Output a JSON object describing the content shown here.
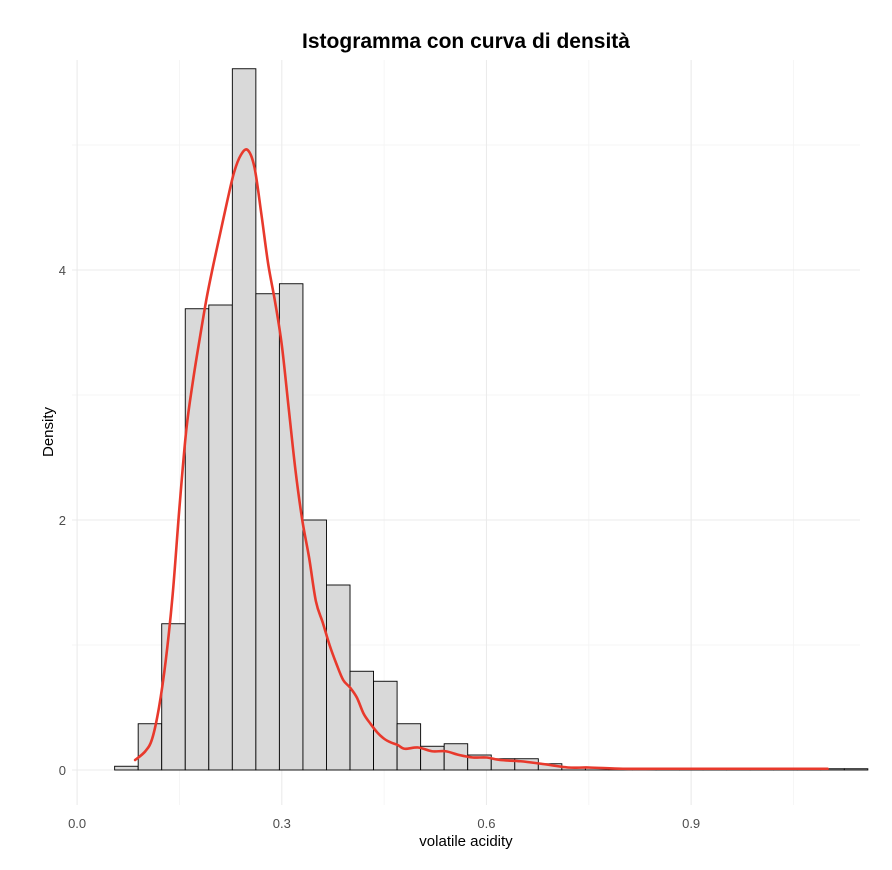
{
  "chart_data": {
    "type": "bar",
    "title": "Istogramma con curva di densità",
    "xlabel": "volatile acidity",
    "ylabel": "Density",
    "xlim": [
      -0.0075,
      1.1475
    ],
    "ylim": [
      -0.28,
      5.68
    ],
    "x_ticks": [
      0.0,
      0.3,
      0.6,
      0.9
    ],
    "x_tick_labels": [
      "0.0",
      "0.3",
      "0.6",
      "0.9"
    ],
    "y_ticks": [
      0,
      2,
      4
    ],
    "y_tick_labels": [
      "0",
      "2",
      "4"
    ],
    "grid": true,
    "legend": "none",
    "bins": {
      "start": 0.055,
      "width": 0.0345,
      "densities": [
        0.03,
        0.37,
        1.17,
        3.69,
        3.72,
        5.61,
        3.81,
        3.89,
        2.0,
        1.48,
        0.79,
        0.71,
        0.37,
        0.19,
        0.21,
        0.12,
        0.09,
        0.09,
        0.05,
        0.02,
        0.02,
        0.01,
        0.01,
        0.01,
        0.01,
        0.01,
        0.01,
        0.01,
        0.01,
        0.01,
        0.01,
        0.01
      ]
    },
    "series": [
      {
        "type": "line",
        "color": "#e8392c",
        "x": [
          0.085,
          0.1,
          0.11,
          0.12,
          0.13,
          0.14,
          0.15,
          0.16,
          0.17,
          0.18,
          0.19,
          0.2,
          0.21,
          0.22,
          0.23,
          0.24,
          0.25,
          0.26,
          0.27,
          0.28,
          0.29,
          0.3,
          0.31,
          0.32,
          0.33,
          0.34,
          0.35,
          0.36,
          0.37,
          0.38,
          0.39,
          0.4,
          0.41,
          0.42,
          0.43,
          0.44,
          0.45,
          0.46,
          0.47,
          0.48,
          0.5,
          0.52,
          0.54,
          0.56,
          0.58,
          0.6,
          0.62,
          0.65,
          0.68,
          0.72,
          0.75,
          0.8,
          0.85,
          0.9,
          0.95,
          1.0,
          1.05,
          1.1
        ],
        "y": [
          0.08,
          0.15,
          0.25,
          0.5,
          0.88,
          1.4,
          2.1,
          2.72,
          3.12,
          3.46,
          3.78,
          4.05,
          4.3,
          4.55,
          4.78,
          4.92,
          4.96,
          4.82,
          4.45,
          4.05,
          3.75,
          3.4,
          2.9,
          2.4,
          2.0,
          1.7,
          1.35,
          1.18,
          1.0,
          0.85,
          0.72,
          0.66,
          0.58,
          0.45,
          0.37,
          0.3,
          0.25,
          0.22,
          0.2,
          0.17,
          0.18,
          0.15,
          0.15,
          0.12,
          0.1,
          0.1,
          0.08,
          0.07,
          0.05,
          0.02,
          0.02,
          0.01,
          0.01,
          0.01,
          0.01,
          0.01,
          0.01,
          0.01
        ]
      }
    ]
  }
}
